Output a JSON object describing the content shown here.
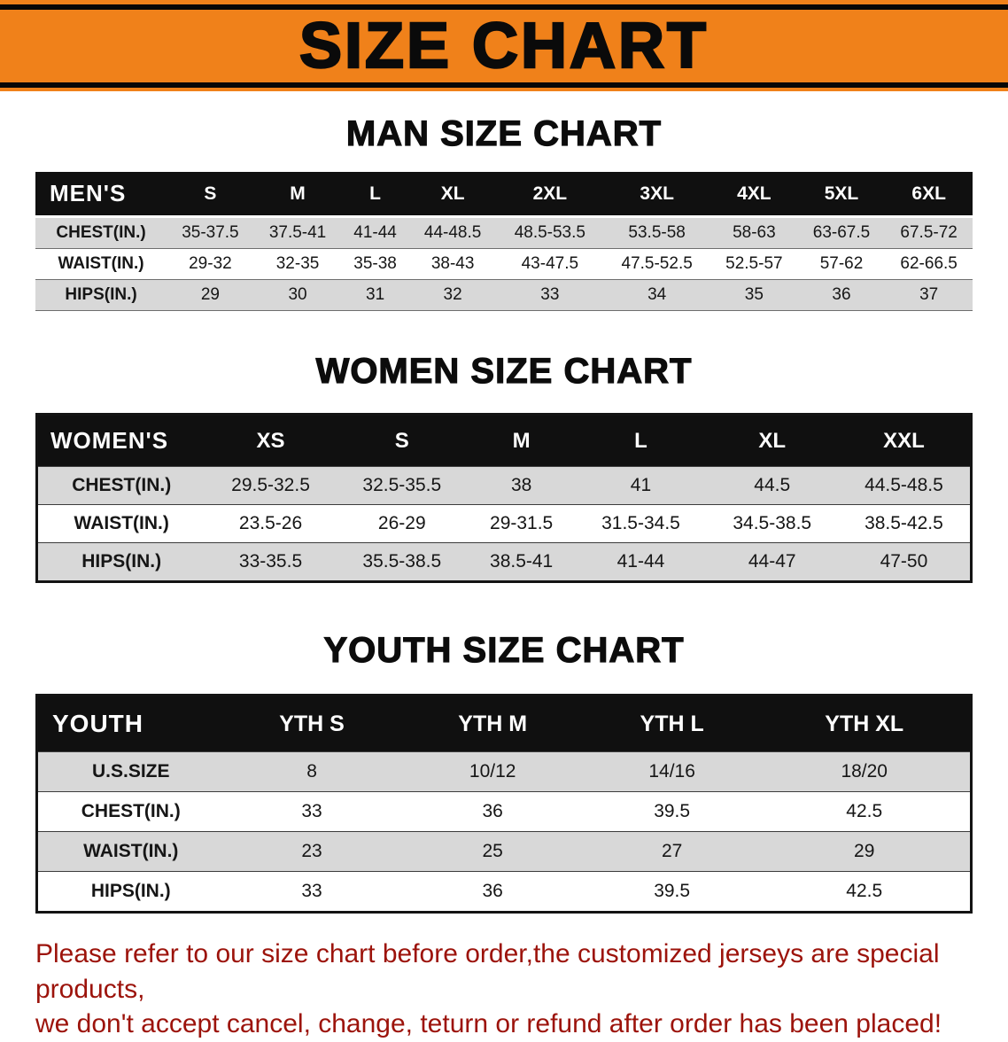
{
  "banner": {
    "title": "SIZE CHART",
    "bg_color": "#f0811a"
  },
  "sections": [
    {
      "id": "men",
      "heading": "MAN SIZE CHART",
      "table": {
        "header": [
          "MEN'S",
          "S",
          "M",
          "L",
          "XL",
          "2XL",
          "3XL",
          "4XL",
          "5XL",
          "6XL"
        ],
        "rows": [
          [
            "CHEST(IN.)",
            "35-37.5",
            "37.5-41",
            "41-44",
            "44-48.5",
            "48.5-53.5",
            "53.5-58",
            "58-63",
            "63-67.5",
            "67.5-72"
          ],
          [
            "WAIST(IN.)",
            "29-32",
            "32-35",
            "35-38",
            "38-43",
            "43-47.5",
            "47.5-52.5",
            "52.5-57",
            "57-62",
            "62-66.5"
          ],
          [
            "HIPS(IN.)",
            "29",
            "30",
            "31",
            "32",
            "33",
            "34",
            "35",
            "36",
            "37"
          ]
        ]
      }
    },
    {
      "id": "women",
      "heading": "WOMEN SIZE CHART",
      "table": {
        "header": [
          "WOMEN'S",
          "XS",
          "S",
          "M",
          "L",
          "XL",
          "XXL"
        ],
        "rows": [
          [
            "CHEST(IN.)",
            "29.5-32.5",
            "32.5-35.5",
            "38",
            "41",
            "44.5",
            "44.5-48.5"
          ],
          [
            "WAIST(IN.)",
            "23.5-26",
            "26-29",
            "29-31.5",
            "31.5-34.5",
            "34.5-38.5",
            "38.5-42.5"
          ],
          [
            "HIPS(IN.)",
            "33-35.5",
            "35.5-38.5",
            "38.5-41",
            "41-44",
            "44-47",
            "47-50"
          ]
        ]
      }
    },
    {
      "id": "youth",
      "heading": "YOUTH SIZE CHART",
      "table": {
        "header": [
          "YOUTH",
          "YTH S",
          "YTH M",
          "YTH L",
          "YTH XL"
        ],
        "rows": [
          [
            "U.S.SIZE",
            "8",
            "10/12",
            "14/16",
            "18/20"
          ],
          [
            "CHEST(IN.)",
            "33",
            "36",
            "39.5",
            "42.5"
          ],
          [
            "WAIST(IN.)",
            "23",
            "25",
            "27",
            "29"
          ],
          [
            "HIPS(IN.)",
            "33",
            "36",
            "39.5",
            "42.5"
          ]
        ]
      }
    }
  ],
  "footer": {
    "lines": [
      "Please refer to our size chart before order,the customized jerseys are special products,",
      "we don't accept cancel, change, teturn or refund after order has been placed!"
    ],
    "text_color": "#9c130b"
  },
  "colors": {
    "banner_orange": "#f0811a",
    "banner_rule_black": "#070707",
    "table_header_bg": "#101010",
    "row_stripe_gray": "#d8d8d8"
  }
}
